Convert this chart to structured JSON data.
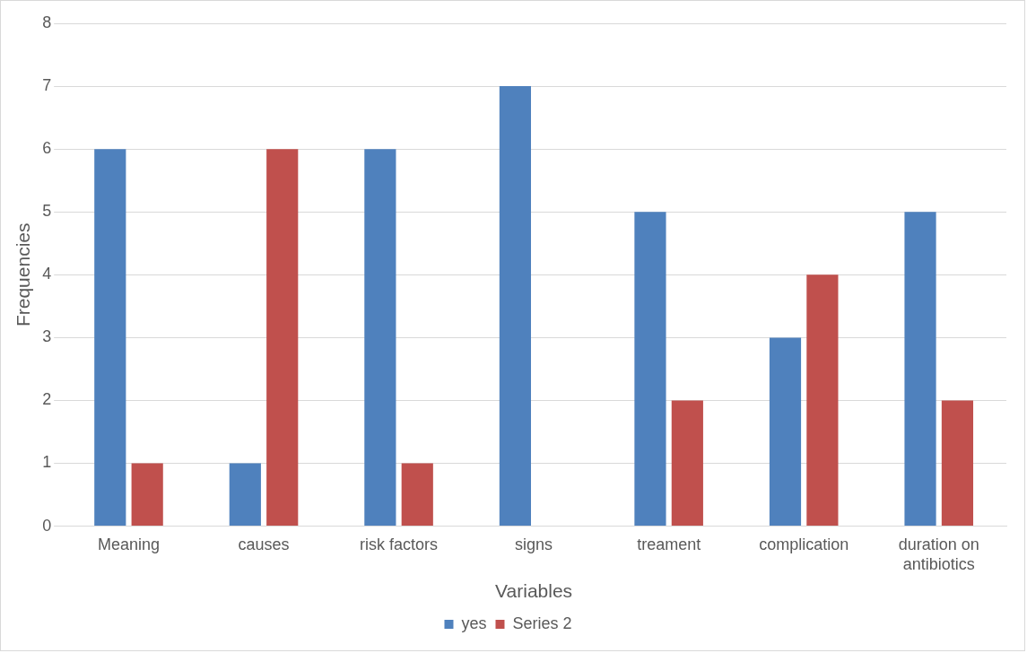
{
  "chart_data": {
    "type": "bar",
    "xlabel": "Variables",
    "ylabel": "Frequencies",
    "categories": [
      "Meaning",
      "causes",
      "risk factors",
      "signs",
      "treament",
      "complication",
      "duration on antibiotics"
    ],
    "series": [
      {
        "name": "yes",
        "color": "#4f81bd",
        "values": [
          6,
          1,
          6,
          7,
          5,
          3,
          5
        ]
      },
      {
        "name": "Series 2",
        "color": "#c0504d",
        "values": [
          1,
          6,
          1,
          0,
          2,
          4,
          2
        ]
      }
    ],
    "ylim": [
      0,
      8
    ],
    "yticks": [
      0,
      1,
      2,
      3,
      4,
      5,
      6,
      7,
      8
    ],
    "grid": "y",
    "legend": "bottom"
  }
}
